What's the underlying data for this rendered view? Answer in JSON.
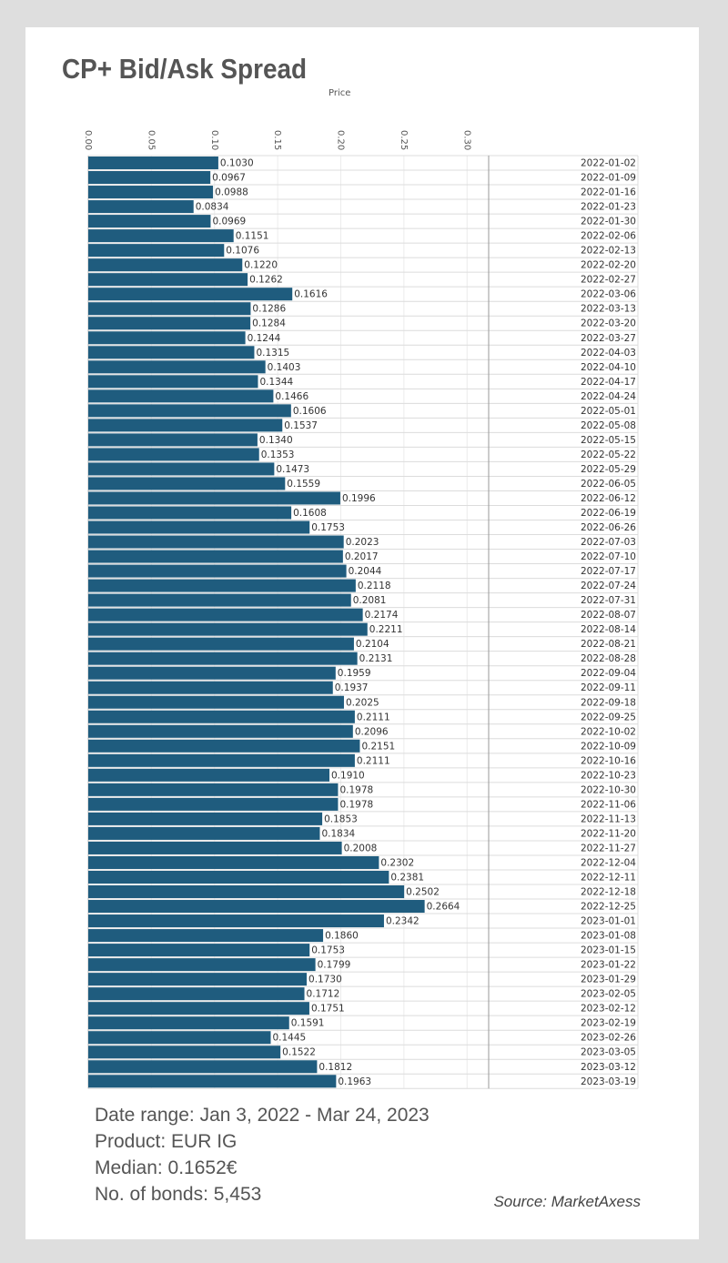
{
  "title": "CP+ Bid/Ask Spread",
  "footer": {
    "date_range": "Date range: Jan 3, 2022 - Mar 24, 2023",
    "product": "Product: EUR IG",
    "median": "Median: 0.1652€",
    "bonds": "No. of bonds: 5,453",
    "source": "Source: MarketAxess"
  },
  "colors": {
    "bar": "#1f5c7e",
    "text": "#555555",
    "background": "#dedede",
    "card": "#ffffff"
  },
  "chart_data": {
    "type": "bar",
    "orientation": "horizontal",
    "title": "CP+ Bid/Ask Spread",
    "xlabel": "Price",
    "ylabel": "",
    "xlim": [
      0,
      0.32
    ],
    "xticks": [
      "0.00",
      "0.05",
      "0.10",
      "0.15",
      "0.20",
      "0.25",
      "0.30"
    ],
    "xtick_values": [
      0,
      0.05,
      0.1,
      0.15,
      0.2,
      0.25,
      0.3
    ],
    "grid": true,
    "categories": [
      "2022-01-02",
      "2022-01-09",
      "2022-01-16",
      "2022-01-23",
      "2022-01-30",
      "2022-02-06",
      "2022-02-13",
      "2022-02-20",
      "2022-02-27",
      "2022-03-06",
      "2022-03-13",
      "2022-03-20",
      "2022-03-27",
      "2022-04-03",
      "2022-04-10",
      "2022-04-17",
      "2022-04-24",
      "2022-05-01",
      "2022-05-08",
      "2022-05-15",
      "2022-05-22",
      "2022-05-29",
      "2022-06-05",
      "2022-06-12",
      "2022-06-19",
      "2022-06-26",
      "2022-07-03",
      "2022-07-10",
      "2022-07-17",
      "2022-07-24",
      "2022-07-31",
      "2022-08-07",
      "2022-08-14",
      "2022-08-21",
      "2022-08-28",
      "2022-09-04",
      "2022-09-11",
      "2022-09-18",
      "2022-09-25",
      "2022-10-02",
      "2022-10-09",
      "2022-10-16",
      "2022-10-23",
      "2022-10-30",
      "2022-11-06",
      "2022-11-13",
      "2022-11-20",
      "2022-11-27",
      "2022-12-04",
      "2022-12-11",
      "2022-12-18",
      "2022-12-25",
      "2023-01-01",
      "2023-01-08",
      "2023-01-15",
      "2023-01-22",
      "2023-01-29",
      "2023-02-05",
      "2023-02-12",
      "2023-02-19",
      "2023-02-26",
      "2023-03-05",
      "2023-03-12",
      "2023-03-19"
    ],
    "values": [
      0.103,
      0.0967,
      0.0988,
      0.0834,
      0.0969,
      0.1151,
      0.1076,
      0.122,
      0.1262,
      0.1616,
      0.1286,
      0.1284,
      0.1244,
      0.1315,
      0.1403,
      0.1344,
      0.1466,
      0.1606,
      0.1537,
      0.134,
      0.1353,
      0.1473,
      0.1559,
      0.1996,
      0.1608,
      0.1753,
      0.2023,
      0.2017,
      0.2044,
      0.2118,
      0.2081,
      0.2174,
      0.2211,
      0.2104,
      0.2131,
      0.1959,
      0.1937,
      0.2025,
      0.2111,
      0.2096,
      0.2151,
      0.2111,
      0.191,
      0.1978,
      0.1978,
      0.1853,
      0.1834,
      0.2008,
      0.2302,
      0.2381,
      0.2502,
      0.2664,
      0.2342,
      0.186,
      0.1753,
      0.1799,
      0.173,
      0.1712,
      0.1751,
      0.1591,
      0.1445,
      0.1522,
      0.1812,
      0.1963
    ],
    "value_labels": [
      "0.1030",
      "0.0967",
      "0.0988",
      "0.0834",
      "0.0969",
      "0.1151",
      "0.1076",
      "0.1220",
      "0.1262",
      "0.1616",
      "0.1286",
      "0.1284",
      "0.1244",
      "0.1315",
      "0.1403",
      "0.1344",
      "0.1466",
      "0.1606",
      "0.1537",
      "0.1340",
      "0.1353",
      "0.1473",
      "0.1559",
      "0.1996",
      "0.1608",
      "0.1753",
      "0.2023",
      "0.2017",
      "0.2044",
      "0.2118",
      "0.2081",
      "0.2174",
      "0.2211",
      "0.2104",
      "0.2131",
      "0.1959",
      "0.1937",
      "0.2025",
      "0.2111",
      "0.2096",
      "0.2151",
      "0.2111",
      "0.1910",
      "0.1978",
      "0.1978",
      "0.1853",
      "0.1834",
      "0.2008",
      "0.2302",
      "0.2381",
      "0.2502",
      "0.2664",
      "0.2342",
      "0.1860",
      "0.1753",
      "0.1799",
      "0.1730",
      "0.1712",
      "0.1751",
      "0.1591",
      "0.1445",
      "0.1522",
      "0.1812",
      "0.1963"
    ]
  }
}
